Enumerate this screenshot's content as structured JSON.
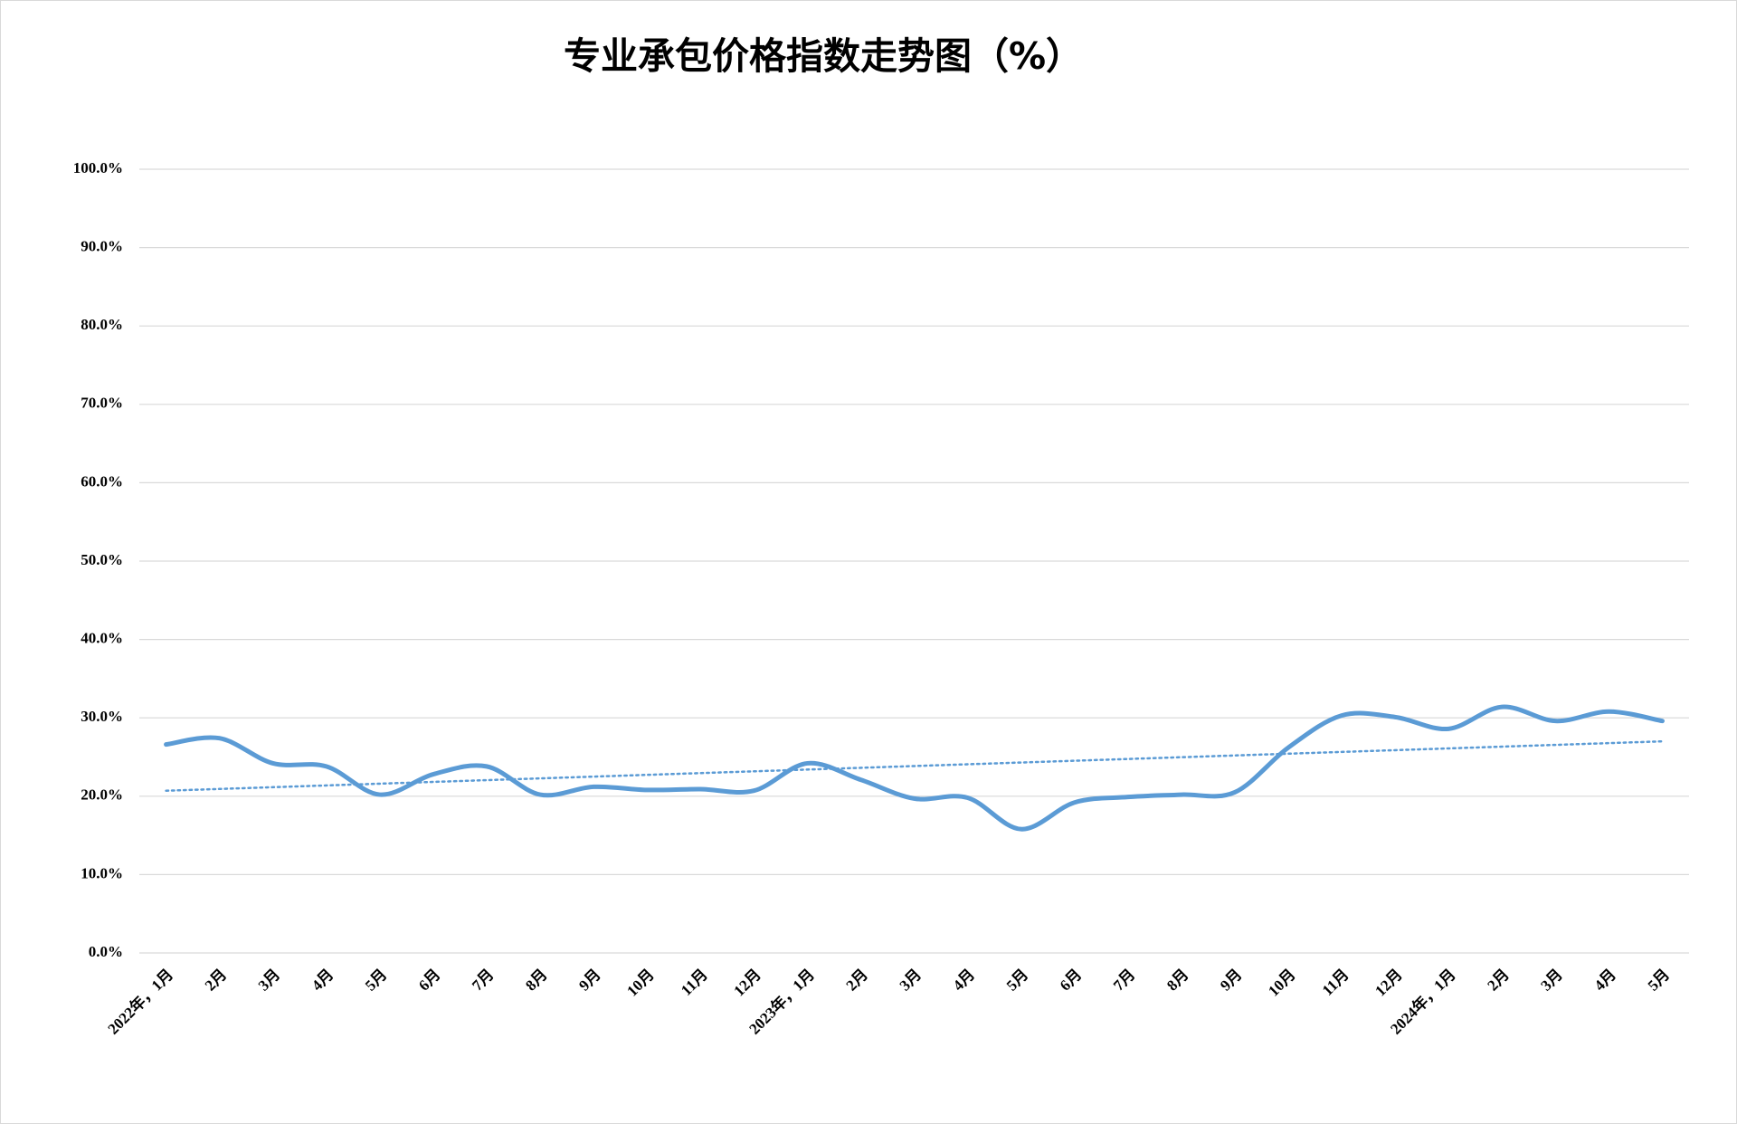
{
  "chart_data": {
    "type": "line",
    "title": "专业承包价格指数走势图（%）",
    "categories": [
      "2022年，1月",
      "2月",
      "3月",
      "4月",
      "5月",
      "6月",
      "7月",
      "8月",
      "9月",
      "10月",
      "11月",
      "12月",
      "2023年，1月",
      "2月",
      "3月",
      "4月",
      "5月",
      "6月",
      "7月",
      "8月",
      "9月",
      "10月",
      "11月",
      "12月",
      "2024年，1月",
      "2月",
      "3月",
      "4月",
      "5月"
    ],
    "series": [
      {
        "name": "专业承包价格指数",
        "color": "#5b9bd5",
        "values": [
          26.6,
          27.4,
          24.2,
          23.8,
          20.2,
          22.8,
          23.8,
          20.2,
          21.2,
          20.8,
          20.9,
          20.7,
          24.2,
          22.1,
          19.7,
          19.8,
          15.8,
          19.2,
          19.9,
          20.2,
          20.5,
          26.2,
          30.3,
          30.1,
          28.6,
          31.4,
          29.6,
          30.8,
          29.6
        ]
      }
    ],
    "trendline": {
      "color": "#5b9bd5",
      "values": [
        20.7,
        27.0
      ]
    },
    "ylim": [
      0,
      100
    ],
    "yticks": [
      {
        "value": 0,
        "label": "0.0%"
      },
      {
        "value": 10,
        "label": "10.0%"
      },
      {
        "value": 20,
        "label": "20.0%"
      },
      {
        "value": 30,
        "label": "30.0%"
      },
      {
        "value": 40,
        "label": "40.0%"
      },
      {
        "value": 50,
        "label": "50.0%"
      },
      {
        "value": 60,
        "label": "60.0%"
      },
      {
        "value": 70,
        "label": "70.0%"
      },
      {
        "value": 80,
        "label": "80.0%"
      },
      {
        "value": 90,
        "label": "90.0%"
      },
      {
        "value": 100,
        "label": "100.0%"
      }
    ],
    "grid": true
  }
}
